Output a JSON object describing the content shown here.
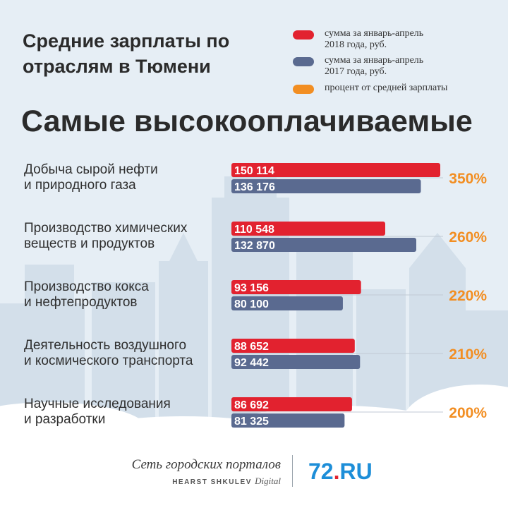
{
  "header": {
    "title_line1": "Средние зарплаты по",
    "title_line2": "отраслям в Тюмени",
    "subtitle": "Самые высокооплачиваемые"
  },
  "legend": {
    "items": [
      {
        "line1": "сумма за январь-апрель",
        "line2": "2018 года, руб.",
        "color": "#e2222f"
      },
      {
        "line1": "сумма за январь-апрель",
        "line2": "2017 года, руб.",
        "color": "#5a6a90"
      },
      {
        "line1": "процент от средней зарплаты",
        "line2": "",
        "color": "#f28e22"
      }
    ]
  },
  "chart_data": {
    "type": "bar",
    "orientation": "horizontal",
    "categories": [
      [
        "Добыча сырой нефти",
        "и природного газа"
      ],
      [
        "Производство химических",
        "веществ и продуктов"
      ],
      [
        "Производство кокса",
        "и нефтепродуктов"
      ],
      [
        "Деятельность воздушного",
        "и космического транспорта"
      ],
      [
        "Научные исследования",
        "и разработки"
      ]
    ],
    "series": [
      {
        "name": "сумма за январь-апрель 2018 года, руб.",
        "color": "#e2222f",
        "values": [
          150114,
          110548,
          93156,
          88652,
          86692
        ],
        "labels": [
          "150 114",
          "110 548",
          "93 156",
          "88 652",
          "86 692"
        ]
      },
      {
        "name": "сумма за январь-апрель 2017 года, руб.",
        "color": "#5a6a90",
        "values": [
          136176,
          132870,
          80100,
          92442,
          81325
        ],
        "labels": [
          "136 176",
          "132 870",
          "80 100",
          "92 442",
          "81 325"
        ]
      }
    ],
    "percent_of_average": [
      "350%",
      "260%",
      "220%",
      "210%",
      "200%"
    ],
    "percent_color": "#f28e22"
  },
  "footer": {
    "network": "Сеть городских порталов",
    "hearst": "HEARST SHKULEV",
    "hearst_digital": "Digital",
    "brand_number": "72",
    "brand_dot": ".",
    "brand_suffix": "RU"
  }
}
